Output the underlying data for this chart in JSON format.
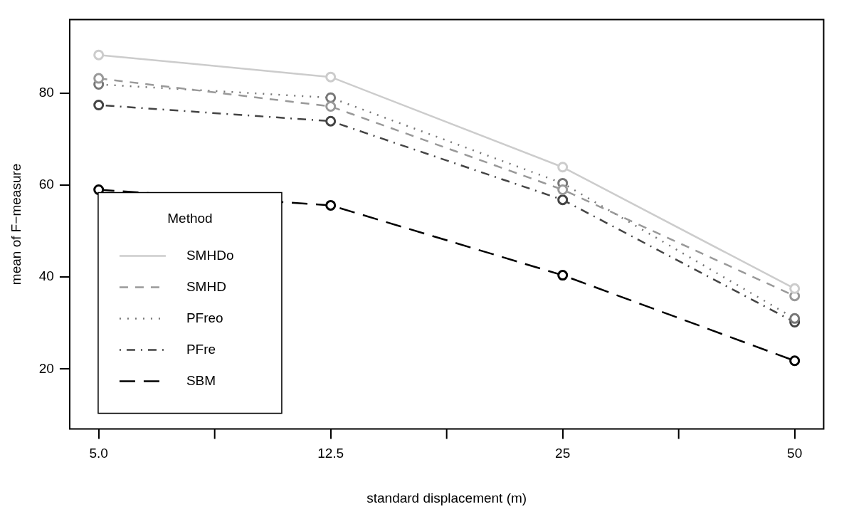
{
  "chart_data": {
    "type": "line",
    "xlabel": "standard displacement (m)",
    "ylabel": "mean of F−measure",
    "legend_title": "Method",
    "legend": "bottom left",
    "marker": "circle",
    "grid": false,
    "categories": [
      "5.0",
      "12.5",
      "25",
      "50"
    ],
    "ylim": [
      7,
      96
    ],
    "yticks": [
      20,
      40,
      60,
      80
    ],
    "series": [
      {
        "name": "SMHDo",
        "color": "#cccccc",
        "line_style": "solid",
        "values": [
          88.3,
          83.5,
          63.9,
          37.5
        ]
      },
      {
        "name": "SMHD",
        "color": "#999999",
        "line_style": "dashed",
        "values": [
          83.2,
          77.1,
          59.0,
          35.9
        ]
      },
      {
        "name": "PFreo",
        "color": "#777777",
        "line_style": "dotted",
        "values": [
          81.9,
          79.0,
          60.4,
          31.0
        ]
      },
      {
        "name": "PFre",
        "color": "#444444",
        "line_style": "dashdot",
        "values": [
          77.4,
          73.9,
          56.8,
          30.2
        ]
      },
      {
        "name": "SBM",
        "color": "#000000",
        "line_style": "longdash",
        "values": [
          59.0,
          55.6,
          40.4,
          21.8
        ]
      }
    ]
  }
}
